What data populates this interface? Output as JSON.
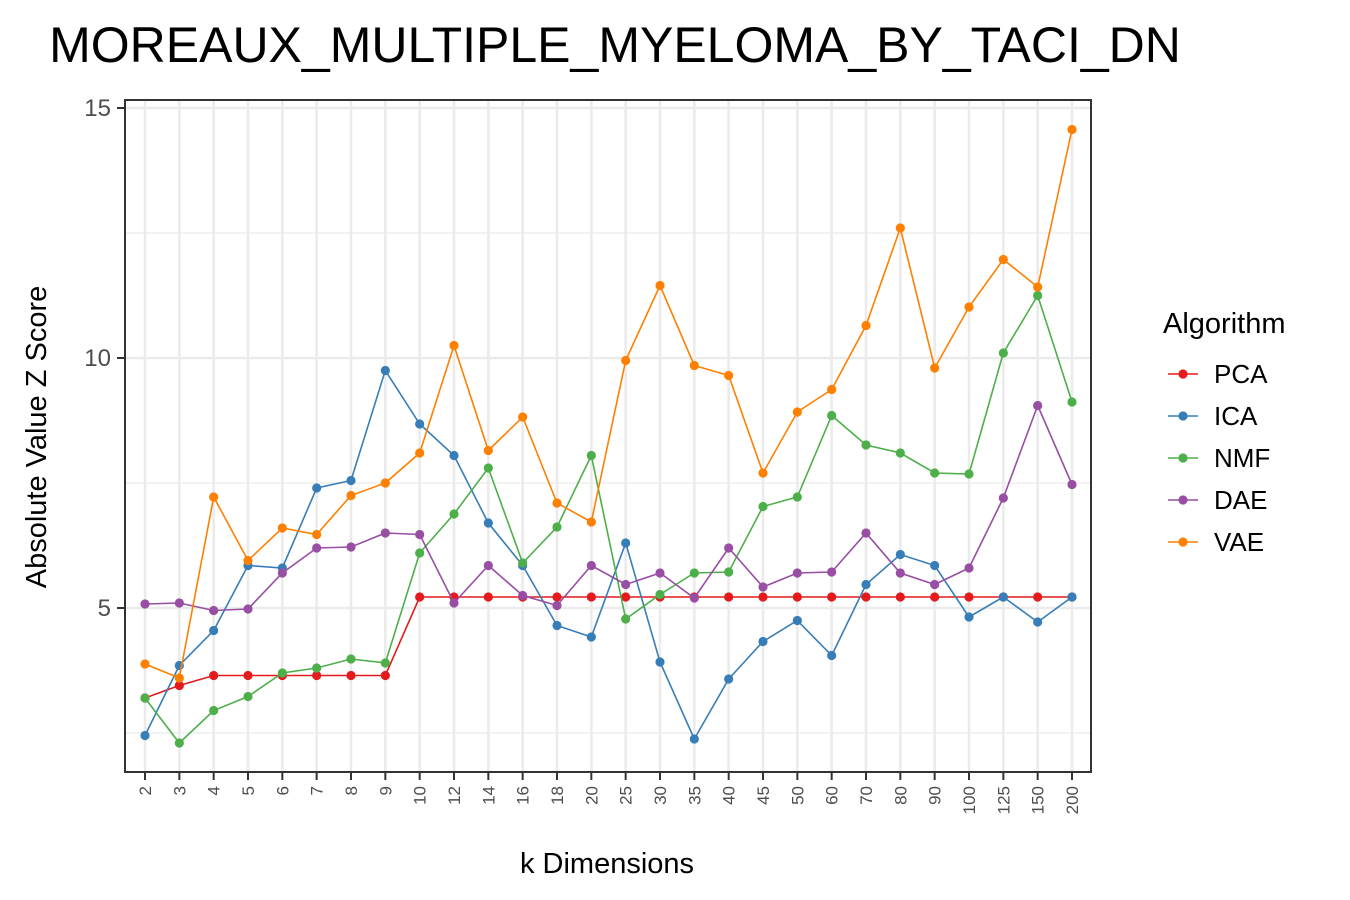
{
  "chart_data": {
    "type": "line",
    "title": "MOREAUX_MULTIPLE_MYELOMA_BY_TACI_DN",
    "xlabel": "k Dimensions",
    "ylabel": "Absolute Value Z Score",
    "categories": [
      "2",
      "3",
      "4",
      "5",
      "6",
      "7",
      "8",
      "9",
      "10",
      "12",
      "14",
      "16",
      "18",
      "20",
      "25",
      "30",
      "35",
      "40",
      "45",
      "50",
      "60",
      "70",
      "80",
      "90",
      "100",
      "125",
      "150",
      "200"
    ],
    "ylim": [
      1.7,
      15.1
    ],
    "yticks": [
      5,
      10,
      15
    ],
    "ytick_labels": [
      "5",
      "10",
      "15"
    ],
    "grid": true,
    "legend": {
      "title": "Algorithm",
      "position": "right"
    },
    "series": [
      {
        "name": "PCA",
        "color": "#e41a1c",
        "values": [
          3.2,
          3.45,
          3.65,
          3.65,
          3.65,
          3.65,
          3.65,
          3.65,
          5.22,
          5.22,
          5.22,
          5.22,
          5.22,
          5.22,
          5.22,
          5.22,
          5.22,
          5.22,
          5.22,
          5.22,
          5.22,
          5.22,
          5.22,
          5.22,
          5.22,
          5.22,
          5.22,
          5.22
        ]
      },
      {
        "name": "ICA",
        "color": "#377eb8",
        "values": [
          2.45,
          3.85,
          4.55,
          5.85,
          5.8,
          7.4,
          7.55,
          9.75,
          8.68,
          8.05,
          6.7,
          5.85,
          4.65,
          4.42,
          6.3,
          3.92,
          2.38,
          3.58,
          4.33,
          4.75,
          4.05,
          5.47,
          6.07,
          5.85,
          4.82,
          5.22,
          4.72,
          5.22
        ]
      },
      {
        "name": "NMF",
        "color": "#4daf4a",
        "values": [
          3.2,
          2.3,
          2.95,
          3.23,
          3.7,
          3.8,
          3.98,
          3.9,
          6.1,
          6.88,
          7.8,
          5.9,
          6.62,
          8.05,
          4.78,
          5.27,
          5.7,
          5.72,
          7.03,
          7.22,
          8.85,
          8.26,
          8.1,
          7.7,
          7.68,
          10.1,
          11.25,
          9.12
        ]
      },
      {
        "name": "DAE",
        "color": "#984ea3",
        "values": [
          5.08,
          5.1,
          4.95,
          4.98,
          5.7,
          6.2,
          6.22,
          6.5,
          6.47,
          5.1,
          5.85,
          5.25,
          5.05,
          5.85,
          5.47,
          5.7,
          5.2,
          6.2,
          5.42,
          5.7,
          5.72,
          6.5,
          5.7,
          5.47,
          5.8,
          7.2,
          9.05,
          7.47
        ]
      },
      {
        "name": "VAE",
        "color": "#ff7f00",
        "values": [
          3.88,
          3.6,
          7.22,
          5.95,
          6.6,
          6.47,
          7.25,
          7.5,
          8.1,
          10.25,
          8.15,
          8.82,
          7.1,
          6.72,
          9.95,
          11.45,
          9.85,
          9.65,
          7.7,
          8.92,
          9.37,
          10.65,
          12.6,
          9.8,
          11.02,
          11.97,
          11.42,
          14.57
        ]
      }
    ]
  }
}
